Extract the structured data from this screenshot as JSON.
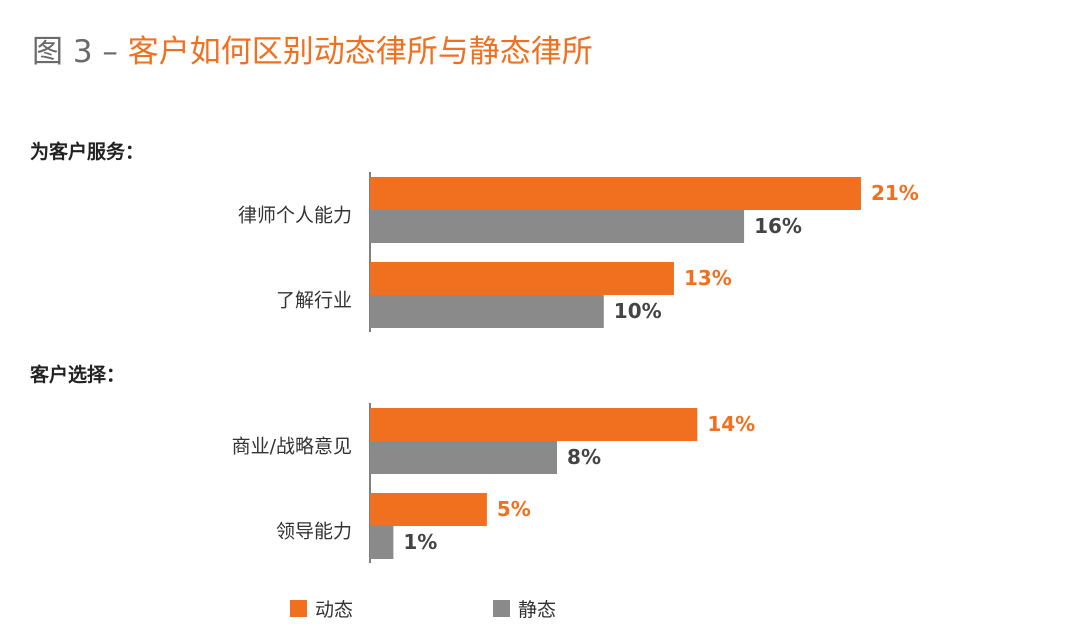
{
  "title": {
    "prefix": "图 3 – ",
    "main": "客户如何区别动态律所与静态律所"
  },
  "colors": {
    "dynamic": "#f07020",
    "static": "#8a8a8a",
    "title_accent": "#f07020",
    "title_gray": "#6b6b6b"
  },
  "chart_data": {
    "type": "bar",
    "orientation": "horizontal",
    "xlim": [
      0,
      25
    ],
    "groups": [
      {
        "label": "为客户服务：",
        "categories": [
          "律师个人能力",
          "了解行业"
        ]
      },
      {
        "label": "客户选择：",
        "categories": [
          "商业/战略意见",
          "领导能力"
        ]
      }
    ],
    "categories": [
      "律师个人能力",
      "了解行业",
      "商业/战略意见",
      "领导能力"
    ],
    "series": [
      {
        "name": "动态",
        "values": [
          21,
          13,
          14,
          5
        ],
        "labels": [
          "21%",
          "13%",
          "14%",
          "5%"
        ]
      },
      {
        "name": "静态",
        "values": [
          16,
          10,
          8,
          1
        ],
        "labels": [
          "16%",
          "10%",
          "8%",
          "1%"
        ]
      }
    ],
    "legend_position": "bottom",
    "grid": false
  }
}
